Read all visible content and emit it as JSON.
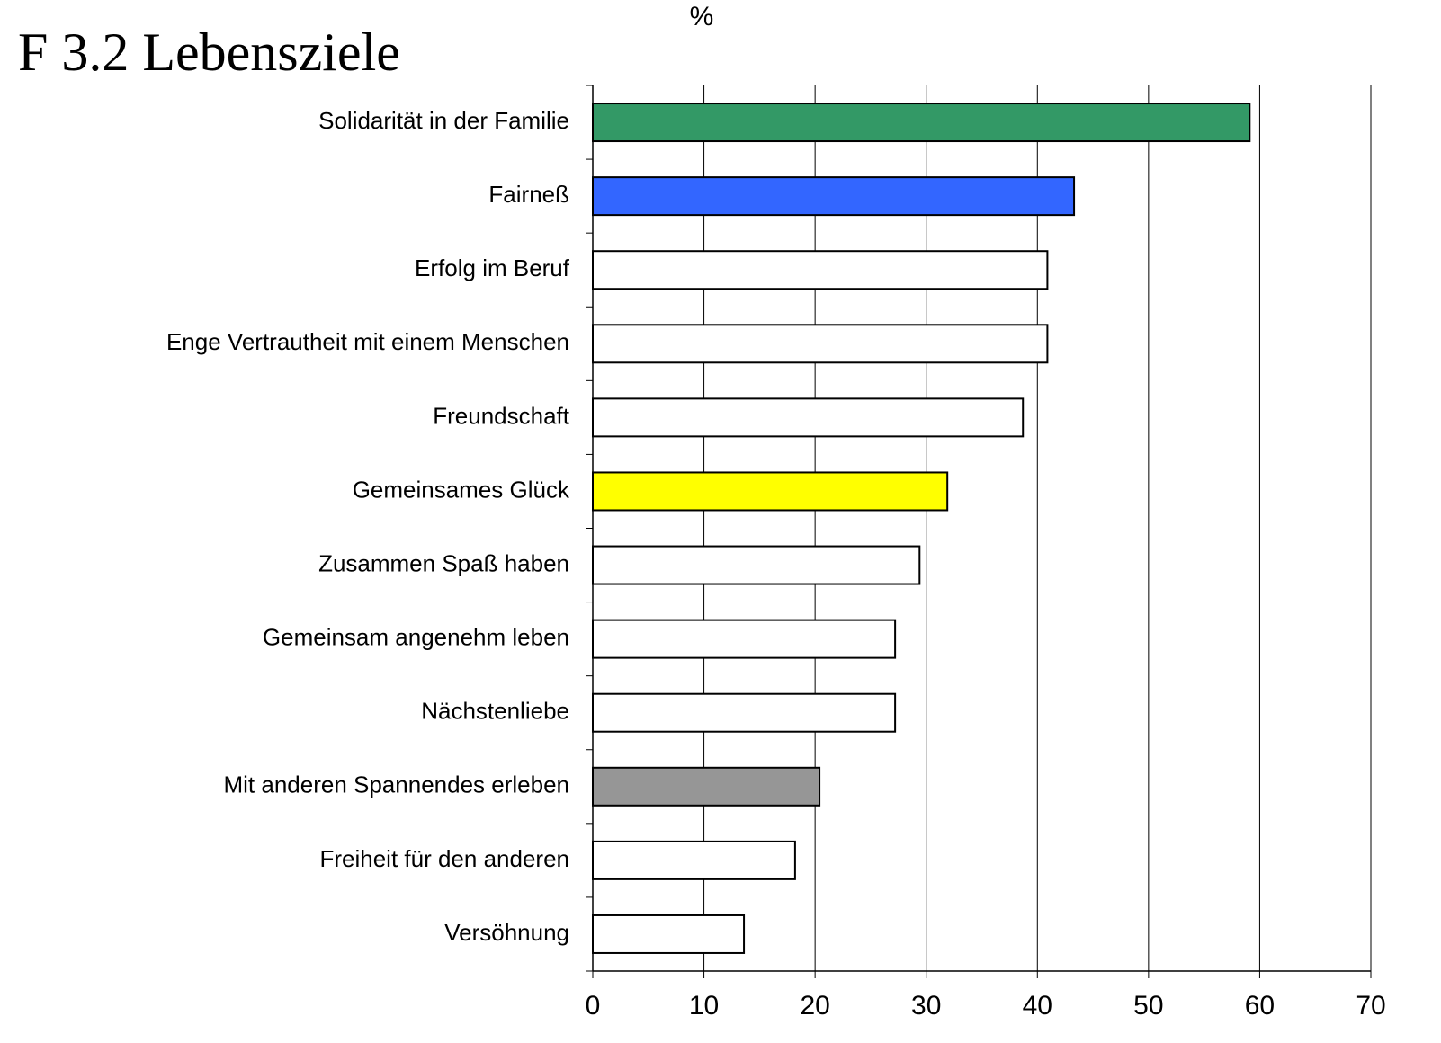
{
  "chart_data": {
    "type": "bar",
    "orientation": "horizontal",
    "title": "F 3.2 Lebensziele",
    "x_label": "%",
    "categories": [
      "Solidarität in der Familie",
      "Fairneß",
      "Erfolg im Beruf",
      "Enge Vertrautheit mit einem Menschen",
      "Freundschaft",
      "Gemeinsames Glück",
      "Zusammen Spaß haben",
      "Gemeinsam angenehm leben",
      "Nächstenliebe",
      "Mit anderen Spannendes erleben",
      "Freiheit für den anderen",
      "Versöhnung"
    ],
    "values": [
      59.1,
      43.3,
      40.9,
      40.9,
      38.7,
      31.9,
      29.4,
      27.2,
      27.2,
      20.4,
      18.2,
      13.6
    ],
    "colors": [
      "#339966",
      "#3366ff",
      "#ffffff",
      "#ffffff",
      "#ffffff",
      "#ffff00",
      "#ffffff",
      "#ffffff",
      "#ffffff",
      "#969696",
      "#ffffff",
      "#ffffff"
    ],
    "xlim": [
      0,
      70
    ],
    "xticks": [
      0,
      10,
      20,
      30,
      40,
      50,
      60,
      70
    ],
    "grid": true
  }
}
